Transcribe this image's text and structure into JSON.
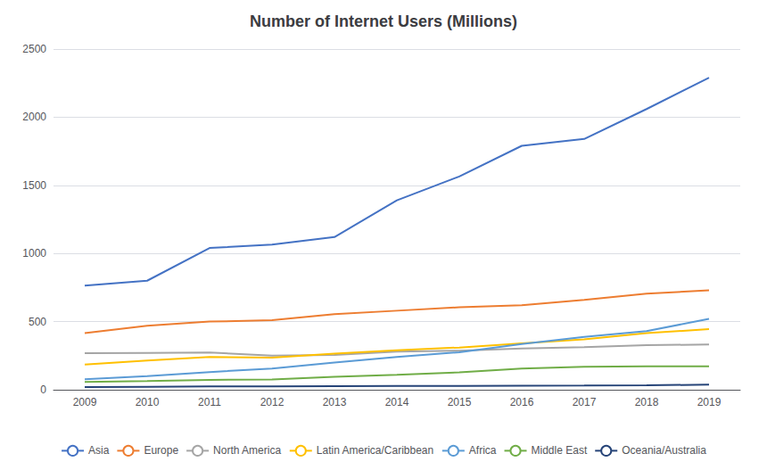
{
  "chart_data": {
    "type": "line",
    "title": "Number of Internet Users (Millions)",
    "categories": [
      "2009",
      "2010",
      "2011",
      "2012",
      "2013",
      "2014",
      "2015",
      "2016",
      "2017",
      "2018",
      "2019"
    ],
    "series": [
      {
        "name": "Asia",
        "color": "#4472C4",
        "values": [
          764,
          800,
          1040,
          1065,
          1120,
          1390,
          1565,
          1790,
          1840,
          2060,
          2290
        ]
      },
      {
        "name": "Europe",
        "color": "#ED7D31",
        "values": [
          415,
          470,
          500,
          510,
          555,
          580,
          605,
          620,
          660,
          705,
          730
        ]
      },
      {
        "name": "North America",
        "color": "#A5A5A5",
        "values": [
          268,
          270,
          273,
          250,
          255,
          280,
          287,
          302,
          312,
          327,
          332
        ]
      },
      {
        "name": "Latin America/Caribbean",
        "color": "#FFC000",
        "values": [
          185,
          215,
          240,
          235,
          265,
          290,
          310,
          340,
          370,
          415,
          445
        ]
      },
      {
        "name": "Africa",
        "color": "#5B9BD5",
        "values": [
          77,
          100,
          130,
          155,
          200,
          240,
          275,
          335,
          388,
          430,
          520
        ]
      },
      {
        "name": "Middle East",
        "color": "#70AD47",
        "values": [
          57,
          63,
          72,
          75,
          95,
          110,
          128,
          155,
          168,
          172,
          172
        ]
      },
      {
        "name": "Oceania/Australia",
        "color": "#264478",
        "values": [
          20,
          22,
          24,
          25,
          26,
          27,
          28,
          30,
          31,
          33,
          37
        ]
      }
    ],
    "ylim": [
      0,
      2500
    ],
    "yticks": [
      0,
      500,
      1000,
      1500,
      2000,
      2500
    ],
    "grid": true,
    "legend": "bottom"
  }
}
